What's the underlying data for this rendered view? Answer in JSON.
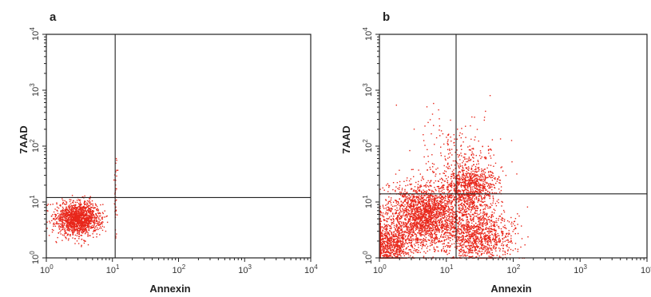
{
  "chart_data": [
    {
      "type": "scatter",
      "panel_label": "a",
      "xlabel": "Annexin",
      "ylabel": "7AAD",
      "xscale": "log",
      "yscale": "log",
      "xlim": [
        1,
        10000
      ],
      "ylim": [
        1,
        10000
      ],
      "x_ticks": [
        {
          "base": "10",
          "exp": "0"
        },
        {
          "base": "10",
          "exp": "1"
        },
        {
          "base": "10",
          "exp": "2"
        },
        {
          "base": "10",
          "exp": "3"
        },
        {
          "base": "10",
          "exp": "4"
        }
      ],
      "y_ticks": [
        {
          "base": "10",
          "exp": "0"
        },
        {
          "base": "10",
          "exp": "1"
        },
        {
          "base": "10",
          "exp": "2"
        },
        {
          "base": "10",
          "exp": "3"
        },
        {
          "base": "10",
          "exp": "4"
        }
      ],
      "quadrant_gate": {
        "x": 11,
        "y": 12
      },
      "point_color": "#e8261a",
      "populations": [
        {
          "center": [
            3.0,
            5.2
          ],
          "spread_log": [
            0.17,
            0.15
          ],
          "count": 1500
        },
        {
          "center": [
            11,
            12
          ],
          "spread_log": [
            0.01,
            0.35
          ],
          "count": 40
        }
      ]
    },
    {
      "type": "scatter",
      "panel_label": "b",
      "xlabel": "Annexin",
      "ylabel": "7AAD",
      "xscale": "log",
      "yscale": "log",
      "xlim": [
        1,
        10000
      ],
      "ylim": [
        1,
        10000
      ],
      "x_ticks": [
        {
          "base": "10",
          "exp": "0"
        },
        {
          "base": "10",
          "exp": "1"
        },
        {
          "base": "10",
          "exp": "2"
        },
        {
          "base": "10",
          "exp": "3"
        },
        {
          "base": "10",
          "exp": "4"
        }
      ],
      "y_ticks": [
        {
          "base": "10",
          "exp": "0"
        },
        {
          "base": "10",
          "exp": "1"
        },
        {
          "base": "10",
          "exp": "2"
        },
        {
          "base": "10",
          "exp": "3"
        },
        {
          "base": "10",
          "exp": "4"
        }
      ],
      "quadrant_gate": {
        "x": 14,
        "y": 14
      },
      "point_color": "#e8261a",
      "populations": [
        {
          "center": [
            1.4,
            1.6
          ],
          "spread_log": [
            0.18,
            0.22
          ],
          "count": 900
        },
        {
          "center": [
            4.5,
            6.0
          ],
          "spread_log": [
            0.28,
            0.28
          ],
          "count": 2200
        },
        {
          "center": [
            22,
            18
          ],
          "spread_log": [
            0.2,
            0.22
          ],
          "count": 900
        },
        {
          "center": [
            30,
            2.5
          ],
          "spread_log": [
            0.25,
            0.25
          ],
          "count": 1100
        },
        {
          "center": [
            15,
            60
          ],
          "spread_log": [
            0.3,
            0.4
          ],
          "count": 250
        }
      ]
    }
  ]
}
